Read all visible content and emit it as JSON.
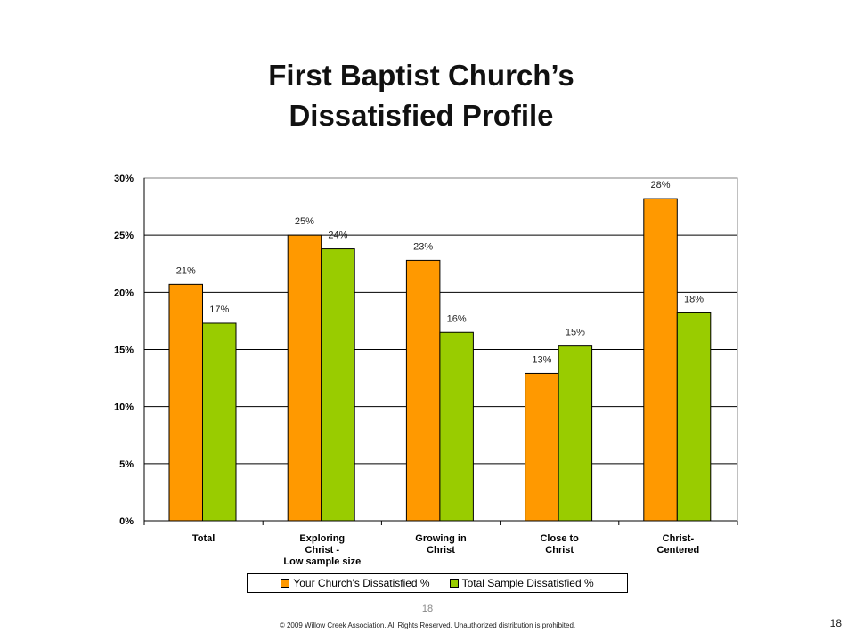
{
  "slide": {
    "title_line1": "First Baptist Church’s",
    "title_line2": "Dissatisfied Profile",
    "page_number_center": "18",
    "page_number_right": "18",
    "copyright": "© 2009 Willow Creek Association. All Rights Reserved. Unauthorized distribution is prohibited."
  },
  "chart_data": {
    "type": "bar",
    "categories": [
      [
        "Total"
      ],
      [
        "Exploring",
        "Christ -",
        "Low sample size"
      ],
      [
        "Growing in",
        "Christ"
      ],
      [
        "Close to",
        "Christ"
      ],
      [
        "Christ-",
        "Centered"
      ]
    ],
    "series": [
      {
        "name": "Your Church's Dissatisfied %",
        "values": [
          21,
          25,
          23,
          13,
          28
        ],
        "labels": [
          "21%",
          "25%",
          "23%",
          "13%",
          "28%"
        ],
        "color": "#FF9900"
      },
      {
        "name": "Total Sample Dissatisfied %",
        "values": [
          17,
          24,
          16,
          15,
          18
        ],
        "labels": [
          "17%",
          "24%",
          "16%",
          "15%",
          "18%"
        ],
        "color": "#99CC00"
      }
    ],
    "plotted_values": [
      [
        20.7,
        25.0,
        22.8,
        12.9,
        28.2
      ],
      [
        17.3,
        23.8,
        16.5,
        15.3,
        18.2
      ]
    ],
    "yticks": [
      "0%",
      "5%",
      "10%",
      "15%",
      "20%",
      "25%",
      "30%"
    ],
    "ylim": [
      0,
      30
    ],
    "grid": true,
    "legend_position": "bottom"
  }
}
